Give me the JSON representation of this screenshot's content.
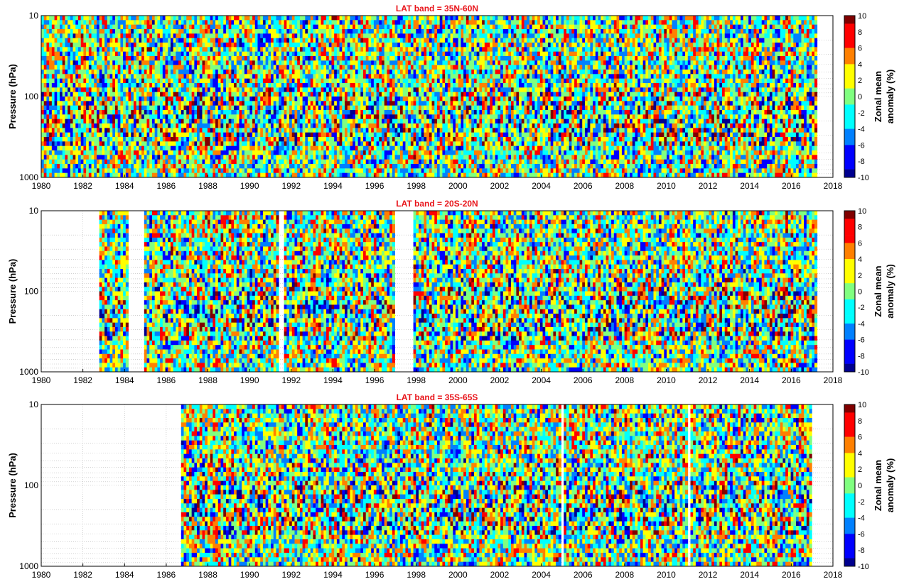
{
  "colors": {
    "title": "#e8141a",
    "axis": "#000000",
    "grid": "#b8b8b8",
    "colormap": [
      "#00008f",
      "#0000ff",
      "#0080ff",
      "#00ffff",
      "#80ff80",
      "#ffff00",
      "#ff8000",
      "#ff0000",
      "#800000"
    ]
  },
  "chart_data": [
    {
      "type": "heatmap",
      "title": "LAT band = 35N-60N",
      "ylabel": "Pressure (hPa)",
      "xlabel": "",
      "x_ticks": [
        "1980",
        "1982",
        "1984",
        "1986",
        "1988",
        "1990",
        "1992",
        "1994",
        "1996",
        "1998",
        "2000",
        "2002",
        "2004",
        "2006",
        "2008",
        "2010",
        "2012",
        "2014",
        "2016",
        "2018"
      ],
      "y_ticks": [
        "10",
        "100",
        "1000"
      ],
      "xlim": [
        1980,
        2018
      ],
      "ylim": [
        1000,
        10
      ],
      "y_scale": "log",
      "grid": true,
      "data_coverage": [
        [
          1980.0,
          2017.3
        ]
      ],
      "colorbar": {
        "label_line1": "Zonal mean",
        "label_line2": "anomaly (%)",
        "ticks": [
          "10",
          "8",
          "6",
          "4",
          "2",
          "0",
          "-2",
          "-4",
          "-6",
          "-8",
          "-10"
        ],
        "range": [
          -10,
          10
        ]
      }
    },
    {
      "type": "heatmap",
      "title": "LAT band = 20S-20N",
      "ylabel": "Pressure (hPa)",
      "xlabel": "",
      "x_ticks": [
        "1980",
        "1982",
        "1984",
        "1986",
        "1988",
        "1990",
        "1992",
        "1994",
        "1996",
        "1998",
        "2000",
        "2002",
        "2004",
        "2006",
        "2008",
        "2010",
        "2012",
        "2014",
        "2016",
        "2018"
      ],
      "y_ticks": [
        "10",
        "100",
        "1000"
      ],
      "xlim": [
        1980,
        2018
      ],
      "ylim": [
        1000,
        10
      ],
      "y_scale": "log",
      "grid": true,
      "data_coverage": [
        [
          1982.8,
          1984.2
        ],
        [
          1985.0,
          1991.4
        ],
        [
          1991.6,
          1997.0
        ],
        [
          1997.9,
          2017.3
        ]
      ],
      "colorbar": {
        "label_line1": "Zonal mean",
        "label_line2": "anomaly (%)",
        "ticks": [
          "10",
          "8",
          "6",
          "4",
          "2",
          "0",
          "-2",
          "-4",
          "-6",
          "-8",
          "-10"
        ],
        "range": [
          -10,
          10
        ]
      }
    },
    {
      "type": "heatmap",
      "title": "LAT band = 35S-65S",
      "ylabel": "Pressure (hPa)",
      "xlabel": "",
      "x_ticks": [
        "1980",
        "1982",
        "1984",
        "1986",
        "1988",
        "1990",
        "1992",
        "1994",
        "1996",
        "1998",
        "2000",
        "2002",
        "2004",
        "2006",
        "2008",
        "2010",
        "2012",
        "2014",
        "2016",
        "2018"
      ],
      "y_ticks": [
        "10",
        "100",
        "1000"
      ],
      "xlim": [
        1980,
        2018
      ],
      "ylim": [
        1000,
        10
      ],
      "y_scale": "log",
      "grid": true,
      "data_coverage": [
        [
          1986.7,
          2004.9
        ],
        [
          2005.1,
          2011.0
        ],
        [
          2011.2,
          2017.0
        ]
      ],
      "colorbar": {
        "label_line1": "Zonal mean",
        "label_line2": "anomaly (%)",
        "ticks": [
          "10",
          "8",
          "6",
          "4",
          "2",
          "0",
          "-2",
          "-4",
          "-6",
          "-8",
          "-10"
        ],
        "range": [
          -10,
          10
        ]
      }
    }
  ]
}
